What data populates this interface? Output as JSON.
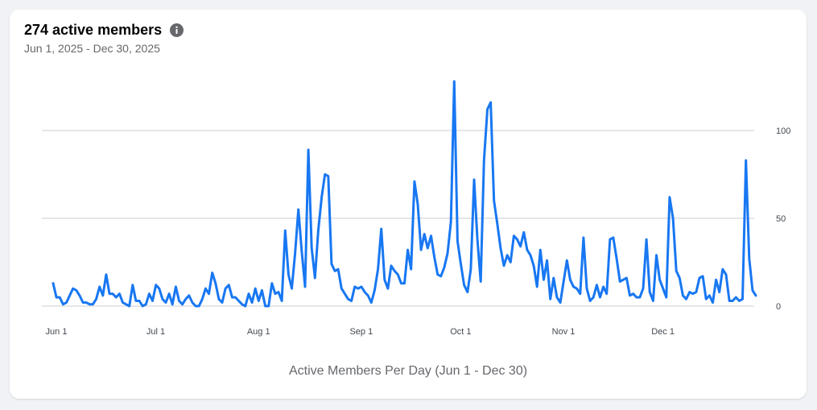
{
  "header": {
    "title": "274 active members",
    "date_range": "Jun 1, 2025 - Dec 30, 2025",
    "info_icon": "info-icon"
  },
  "chart_data": {
    "type": "line",
    "title": "274 active members",
    "xlabel": "Active Members Per Day (Jun 1 - Dec 30)",
    "ylabel": "",
    "ylim": [
      0,
      130
    ],
    "yticks": [
      0,
      50,
      100
    ],
    "grid": true,
    "color": "#1877f2",
    "x_ticks": [
      {
        "label": "Jun 1",
        "day": 0
      },
      {
        "label": "Jul 1",
        "day": 30
      },
      {
        "label": "Aug 1",
        "day": 61
      },
      {
        "label": "Sep 1",
        "day": 92
      },
      {
        "label": "Oct 1",
        "day": 122
      },
      {
        "label": "Nov 1",
        "day": 153
      },
      {
        "label": "Dec 1",
        "day": 183
      }
    ],
    "series": [
      {
        "name": "Active members",
        "start": "Jun 1",
        "values": [
          13,
          5,
          5,
          1,
          2,
          6,
          10,
          9,
          6,
          2,
          2,
          1,
          1,
          4,
          11,
          6,
          18,
          7,
          7,
          5,
          7,
          2,
          1,
          0,
          12,
          3,
          3,
          0,
          1,
          7,
          3,
          12,
          10,
          4,
          2,
          7,
          1,
          11,
          3,
          1,
          4,
          6,
          2,
          0,
          0,
          4,
          10,
          7,
          19,
          13,
          4,
          2,
          10,
          12,
          5,
          5,
          3,
          1,
          0,
          7,
          2,
          10,
          3,
          9,
          0,
          0,
          13,
          7,
          8,
          3,
          43,
          18,
          10,
          30,
          55,
          31,
          11,
          89,
          33,
          16,
          43,
          62,
          75,
          74,
          24,
          20,
          21,
          10,
          7,
          4,
          3,
          11,
          10,
          11,
          8,
          6,
          2,
          9,
          21,
          44,
          15,
          10,
          23,
          20,
          18,
          13,
          13,
          32,
          21,
          71,
          58,
          32,
          41,
          33,
          40,
          28,
          18,
          17,
          22,
          30,
          48,
          128,
          37,
          24,
          12,
          8,
          21,
          72,
          38,
          14,
          83,
          112,
          116,
          60,
          47,
          33,
          23,
          29,
          25,
          40,
          38,
          34,
          42,
          32,
          29,
          23,
          11,
          32,
          15,
          26,
          4,
          16,
          5,
          2,
          14,
          26,
          15,
          11,
          10,
          7,
          39,
          10,
          3,
          5,
          12,
          5,
          11,
          7,
          38,
          39,
          27,
          14,
          15,
          16,
          6,
          7,
          5,
          5,
          10,
          38,
          8,
          3,
          29,
          15,
          10,
          5,
          62,
          50,
          20,
          16,
          6,
          4,
          8,
          7,
          8,
          16,
          17,
          4,
          6,
          2,
          15,
          8,
          21,
          18,
          3,
          3,
          5,
          3,
          4,
          83,
          27,
          9,
          6
        ]
      }
    ]
  }
}
